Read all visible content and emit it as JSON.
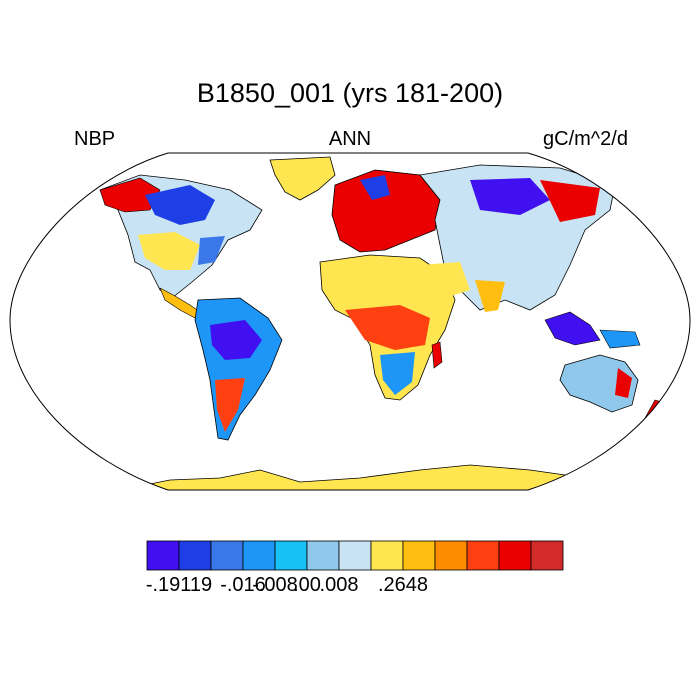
{
  "title": "B1850_001 (yrs 181-200)",
  "left_label": "NBP",
  "center_label": "ANN",
  "right_label": "gC/m^2/d",
  "colorbar": {
    "colors": [
      "#4010f0",
      "#1e3fe6",
      "#3a78ea",
      "#1e96f8",
      "#18c0f8",
      "#90c8ec",
      "#c8e4f4",
      "#ffe650",
      "#ffbe10",
      "#ff8c00",
      "#ff4010",
      "#ea0000",
      "#d32a2a"
    ],
    "tick_labels": [
      {
        "boundary": 0,
        "label": "-.19119"
      },
      {
        "boundary": 2,
        "label": "-.016"
      },
      {
        "boundary": 3,
        "label": "-.008"
      },
      {
        "boundary": 4,
        "label": ".00"
      },
      {
        "boundary": 5,
        "label": ".008"
      },
      {
        "boundary": 8,
        "label": ".2648"
      }
    ]
  }
}
